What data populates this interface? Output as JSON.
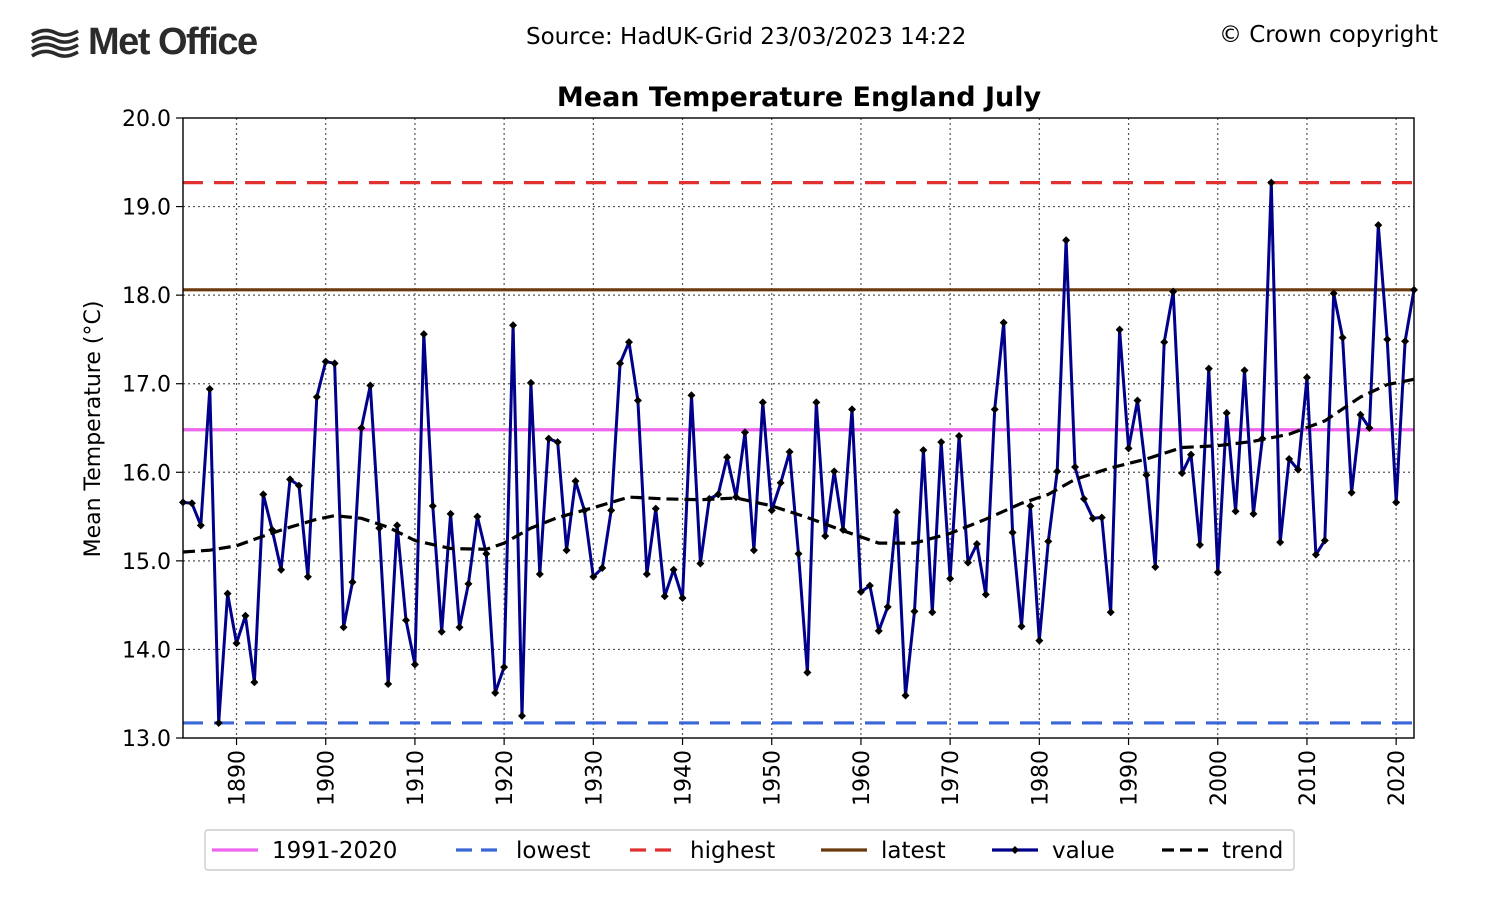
{
  "header": {
    "logo_text": "Met Office",
    "source": "Source: HadUK-Grid 23/03/2023 14:22",
    "copyright": "© Crown copyright"
  },
  "chart_data": {
    "type": "line",
    "title": "Mean Temperature England July",
    "xlabel": "",
    "ylabel": "Mean Temperature (°C)",
    "xlim": [
      1884,
      2022
    ],
    "ylim": [
      13.0,
      20.0
    ],
    "x_ticks": [
      1890,
      1900,
      1910,
      1920,
      1930,
      1940,
      1950,
      1960,
      1970,
      1980,
      1990,
      2000,
      2010,
      2020
    ],
    "y_ticks": [
      13.0,
      14.0,
      15.0,
      16.0,
      17.0,
      18.0,
      19.0,
      20.0
    ],
    "y_tick_labels": [
      "13.0",
      "14.0",
      "15.0",
      "16.0",
      "17.0",
      "18.0",
      "19.0",
      "20.0"
    ],
    "grid": true,
    "legend_position": "bottom",
    "reference_lines": [
      {
        "name": "1991-2020",
        "value": 16.48,
        "color": "#ee66ee",
        "style": "solid"
      },
      {
        "name": "lowest",
        "value": 13.17,
        "color": "#3a66d8",
        "style": "dashed"
      },
      {
        "name": "highest",
        "value": 19.27,
        "color": "#e03030",
        "style": "dashed"
      },
      {
        "name": "latest",
        "value": 18.06,
        "color": "#6a3a0e",
        "style": "solid"
      }
    ],
    "series": [
      {
        "name": "value",
        "color": "#00008b",
        "style": "solid-marker",
        "x": [
          1884,
          1885,
          1886,
          1887,
          1888,
          1889,
          1890,
          1891,
          1892,
          1893,
          1894,
          1895,
          1896,
          1897,
          1898,
          1899,
          1900,
          1901,
          1902,
          1903,
          1904,
          1905,
          1906,
          1907,
          1908,
          1909,
          1910,
          1911,
          1912,
          1913,
          1914,
          1915,
          1916,
          1917,
          1918,
          1919,
          1920,
          1921,
          1922,
          1923,
          1924,
          1925,
          1926,
          1927,
          1928,
          1929,
          1930,
          1931,
          1932,
          1933,
          1934,
          1935,
          1936,
          1937,
          1938,
          1939,
          1940,
          1941,
          1942,
          1943,
          1944,
          1945,
          1946,
          1947,
          1948,
          1949,
          1950,
          1951,
          1952,
          1953,
          1954,
          1955,
          1956,
          1957,
          1958,
          1959,
          1960,
          1961,
          1962,
          1963,
          1964,
          1965,
          1966,
          1967,
          1968,
          1969,
          1970,
          1971,
          1972,
          1973,
          1974,
          1975,
          1976,
          1977,
          1978,
          1979,
          1980,
          1981,
          1982,
          1983,
          1984,
          1985,
          1986,
          1987,
          1988,
          1989,
          1990,
          1991,
          1992,
          1993,
          1994,
          1995,
          1996,
          1997,
          1998,
          1999,
          2000,
          2001,
          2002,
          2003,
          2004,
          2005,
          2006,
          2007,
          2008,
          2009,
          2010,
          2011,
          2012,
          2013,
          2014,
          2015,
          2016,
          2017,
          2018,
          2019,
          2020,
          2021,
          2022
        ],
        "values": [
          15.66,
          15.65,
          15.4,
          16.94,
          13.17,
          14.63,
          14.07,
          14.38,
          13.63,
          15.75,
          15.35,
          14.9,
          15.92,
          15.85,
          14.82,
          16.85,
          17.25,
          17.23,
          14.25,
          14.76,
          16.5,
          16.98,
          15.37,
          13.61,
          15.4,
          14.33,
          13.83,
          17.56,
          15.62,
          14.2,
          15.53,
          14.25,
          14.74,
          15.5,
          15.08,
          13.51,
          13.8,
          17.66,
          13.25,
          17.01,
          14.85,
          16.38,
          16.34,
          15.12,
          15.9,
          15.57,
          14.82,
          14.92,
          15.57,
          17.23,
          17.47,
          16.81,
          14.85,
          15.59,
          14.6,
          14.9,
          14.58,
          16.87,
          14.97,
          15.7,
          15.75,
          16.17,
          15.72,
          16.45,
          15.12,
          16.79,
          15.57,
          15.88,
          16.23,
          15.08,
          13.74,
          16.79,
          15.28,
          16.01,
          15.35,
          16.71,
          14.65,
          14.72,
          14.21,
          14.48,
          15.55,
          13.48,
          14.43,
          16.25,
          14.42,
          16.34,
          14.8,
          16.41,
          14.98,
          15.19,
          14.62,
          16.71,
          17.69,
          15.32,
          14.26,
          15.62,
          14.1,
          15.22,
          16.01,
          18.62,
          16.06,
          15.7,
          15.48,
          15.49,
          14.42,
          17.61,
          16.27,
          16.81,
          15.97,
          14.93,
          17.47,
          18.04,
          15.99,
          16.2,
          15.18,
          17.17,
          14.87,
          16.67,
          15.56,
          17.15,
          15.53,
          16.38,
          19.27,
          15.21,
          16.15,
          16.03,
          17.07,
          15.07,
          15.23,
          18.02,
          17.52,
          15.77,
          16.65,
          16.5,
          18.79,
          17.5,
          15.66,
          17.48,
          18.06
        ]
      },
      {
        "name": "trend",
        "color": "#000000",
        "style": "dashed",
        "x": [
          1884,
          1887,
          1890,
          1893,
          1896,
          1899,
          1901,
          1904,
          1907,
          1910,
          1914,
          1918,
          1920,
          1923,
          1926,
          1930,
          1934,
          1938,
          1942,
          1946,
          1950,
          1954,
          1958,
          1962,
          1966,
          1970,
          1974,
          1978,
          1981,
          1984,
          1988,
          1992,
          1996,
          2000,
          2004,
          2008,
          2012,
          2016,
          2019,
          2022
        ],
        "values": [
          15.1,
          15.12,
          15.17,
          15.28,
          15.38,
          15.47,
          15.51,
          15.48,
          15.38,
          15.23,
          15.14,
          15.13,
          15.2,
          15.37,
          15.49,
          15.6,
          15.72,
          15.7,
          15.69,
          15.71,
          15.62,
          15.49,
          15.34,
          15.2,
          15.2,
          15.31,
          15.47,
          15.65,
          15.75,
          15.92,
          16.05,
          16.15,
          16.28,
          16.3,
          16.35,
          16.43,
          16.58,
          16.85,
          16.99,
          17.05
        ]
      }
    ]
  }
}
